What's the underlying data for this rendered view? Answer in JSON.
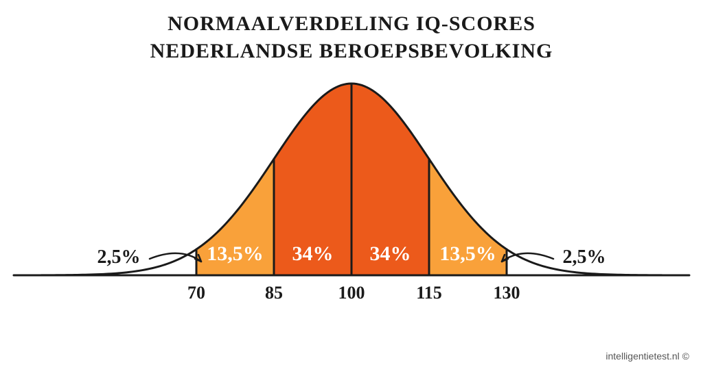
{
  "title": {
    "line1": "NORMAALVERDELING IQ-SCORES",
    "line2": "NEDERLANDSE BEROEPSBEVOLKING",
    "fontsize": 30,
    "color": "#1a1a1a"
  },
  "chart": {
    "type": "bell-curve",
    "x_ticks": [
      70,
      85,
      100,
      115,
      130
    ],
    "x_tick_labels": [
      "70",
      "85",
      "100",
      "115",
      "130"
    ],
    "mean": 100,
    "sd": 15,
    "segments": [
      {
        "from": null,
        "to": 70,
        "pct": "2,5%",
        "fill": "#ffffff",
        "text_color": "#1a1a1a",
        "tail": "left"
      },
      {
        "from": 70,
        "to": 85,
        "pct": "13,5%",
        "fill": "#f9a13a",
        "text_color": "#ffffff"
      },
      {
        "from": 85,
        "to": 100,
        "pct": "34%",
        "fill": "#ec5a1b",
        "text_color": "#ffffff"
      },
      {
        "from": 100,
        "to": 115,
        "pct": "34%",
        "fill": "#ec5a1b",
        "text_color": "#ffffff"
      },
      {
        "from": 115,
        "to": 130,
        "pct": "13,5%",
        "fill": "#f9a13a",
        "text_color": "#ffffff"
      },
      {
        "from": 130,
        "to": null,
        "pct": "2,5%",
        "fill": "#ffffff",
        "text_color": "#1a1a1a",
        "tail": "right"
      }
    ],
    "stroke_color": "#1a1a1a",
    "stroke_width": 3,
    "pct_fontsize_inner": 30,
    "pct_fontsize_tail": 28,
    "axis_fontsize": 26,
    "axis_label_color": "#1a1a1a"
  },
  "attribution": "intelligentietest.nl ©"
}
